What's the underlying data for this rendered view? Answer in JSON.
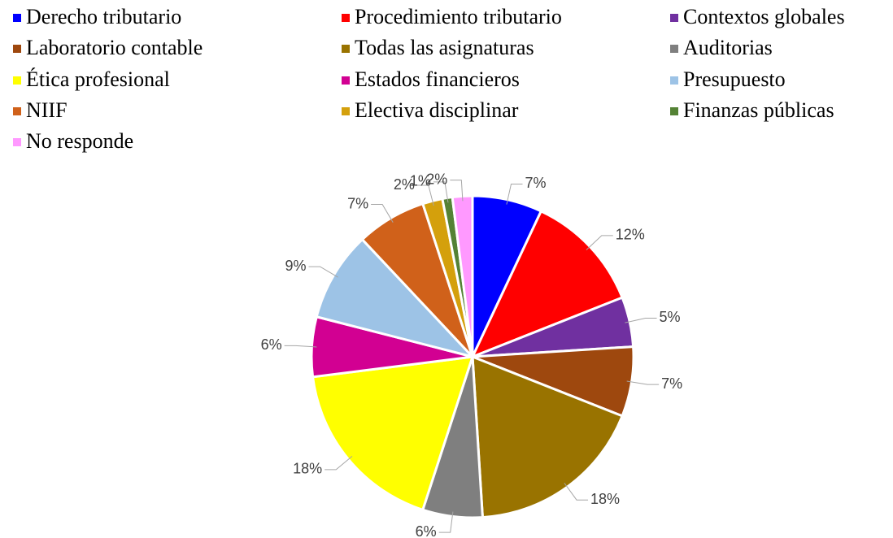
{
  "chart_data": {
    "type": "pie",
    "categories": [
      "Derecho tributario",
      "Procedimiento tributario",
      "Contextos globales",
      "Laboratorio contable",
      "Todas las asignaturas",
      "Auditorias",
      "Ética profesional",
      "Estados financieros",
      "Presupuesto",
      "NIIF",
      "Electiva disciplinar",
      "Finanzas públicas",
      "No responde"
    ],
    "values": [
      7,
      12,
      5,
      7,
      18,
      6,
      18,
      6,
      9,
      7,
      2,
      1,
      2
    ],
    "value_labels": [
      "7%",
      "12%",
      "5%",
      "7%",
      "18%",
      "6%",
      "18%",
      "6%",
      "9%",
      "7%",
      "2%",
      "1%",
      "2%"
    ],
    "colors": [
      "#0000ff",
      "#ff0000",
      "#7030a0",
      "#9e480e",
      "#997300",
      "#7f7f7f",
      "#ffff00",
      "#d20092",
      "#9dc3e6",
      "#d0611a",
      "#d4a00c",
      "#548235",
      "#ff99ff"
    ],
    "legend": "top"
  }
}
